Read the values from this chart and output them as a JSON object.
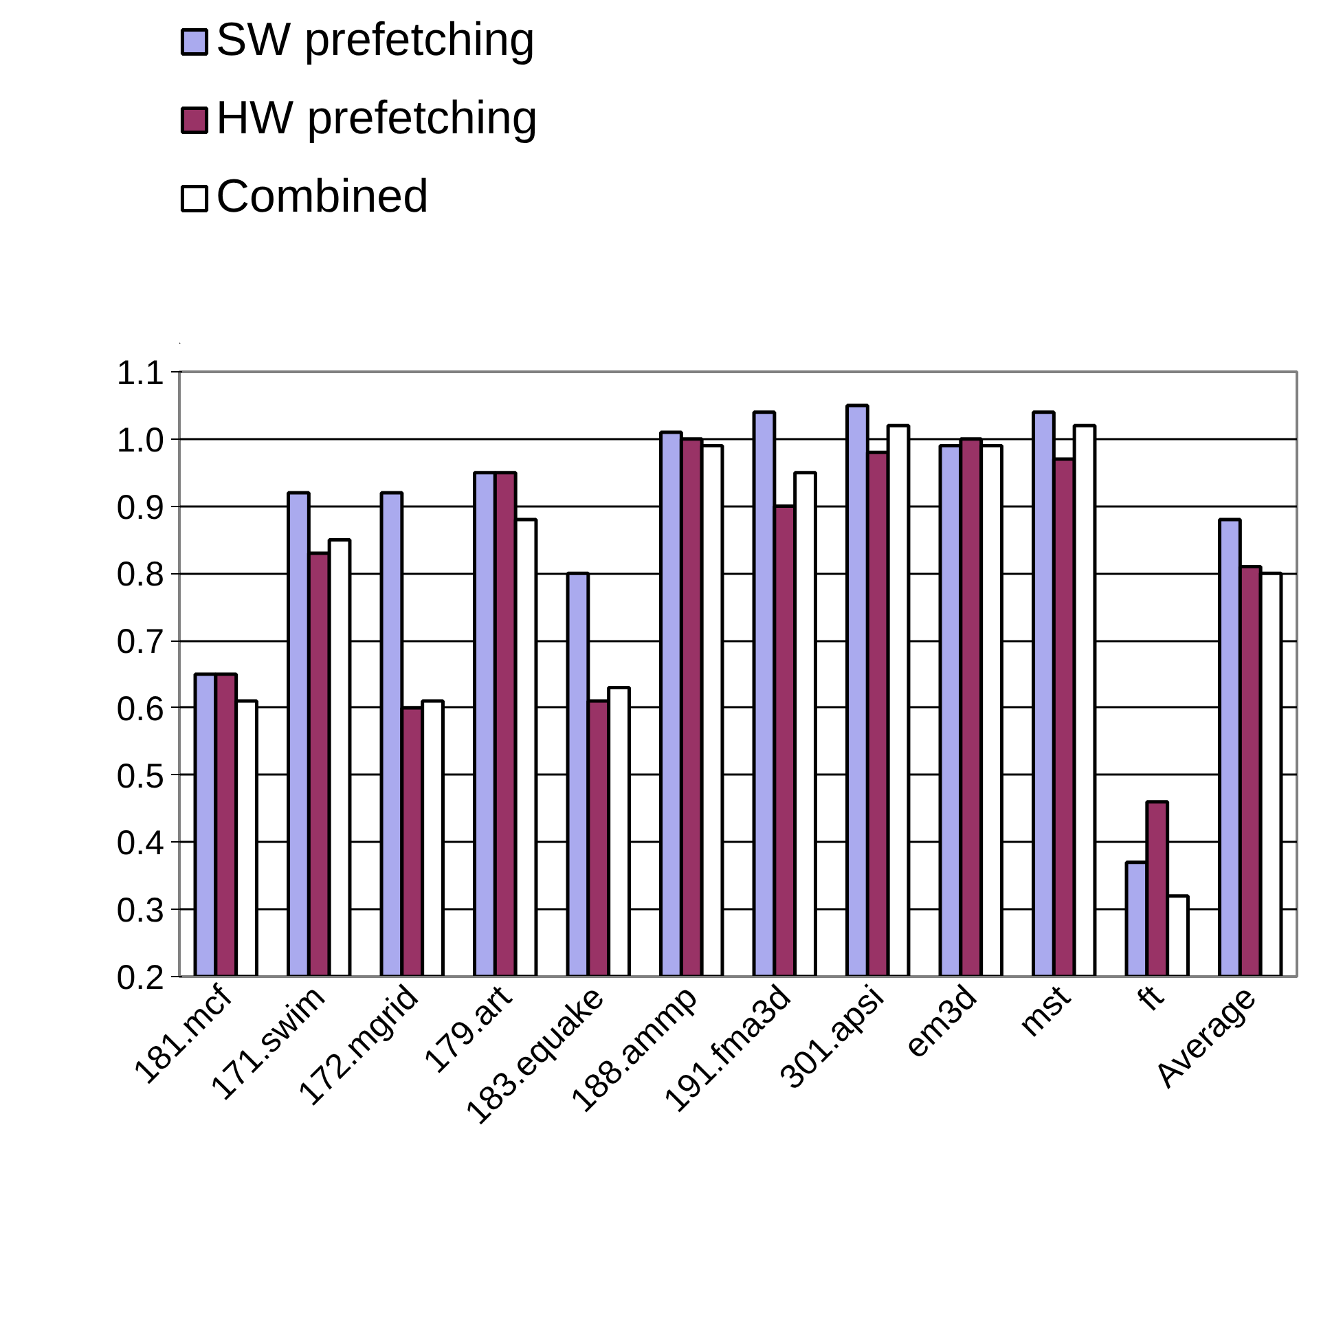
{
  "chart_data": {
    "type": "bar",
    "categories": [
      "181.mcf",
      "171.swim",
      "172.mgrid",
      "179.art",
      "183.equake",
      "188.ammp",
      "191.fma3d",
      "301.apsi",
      "em3d",
      "mst",
      "ft",
      "Average"
    ],
    "series": [
      {
        "name": "SW prefetching",
        "color": "#aaaaee",
        "values": [
          0.65,
          0.92,
          0.92,
          0.95,
          0.8,
          1.01,
          1.04,
          1.05,
          0.99,
          1.04,
          0.37,
          0.88
        ]
      },
      {
        "name": "HW prefetching",
        "color": "#993366",
        "values": [
          0.65,
          0.83,
          0.6,
          0.95,
          0.61,
          1.0,
          0.9,
          0.98,
          1.0,
          0.97,
          0.46,
          0.81
        ]
      },
      {
        "name": "Combined",
        "color": "#ffffff",
        "values": [
          0.61,
          0.85,
          0.61,
          0.88,
          0.63,
          0.99,
          0.95,
          1.02,
          0.99,
          1.02,
          0.32,
          0.8
        ]
      }
    ],
    "ylim": [
      0.2,
      1.1
    ],
    "yticks": [
      {
        "value": 0.2,
        "label": "0.2"
      },
      {
        "value": 0.3,
        "label": "0.3"
      },
      {
        "value": 0.4,
        "label": "0.4"
      },
      {
        "value": 0.5,
        "label": "0.5"
      },
      {
        "value": 0.6,
        "label": "0.6"
      },
      {
        "value": 0.7,
        "label": "0.7"
      },
      {
        "value": 0.8,
        "label": "0.8"
      },
      {
        "value": 0.9,
        "label": "0.9"
      },
      {
        "value": 1.0,
        "label": "1.0"
      },
      {
        "value": 1.1,
        "label": "1.1"
      }
    ],
    "grid": "y",
    "legend": "top left"
  }
}
